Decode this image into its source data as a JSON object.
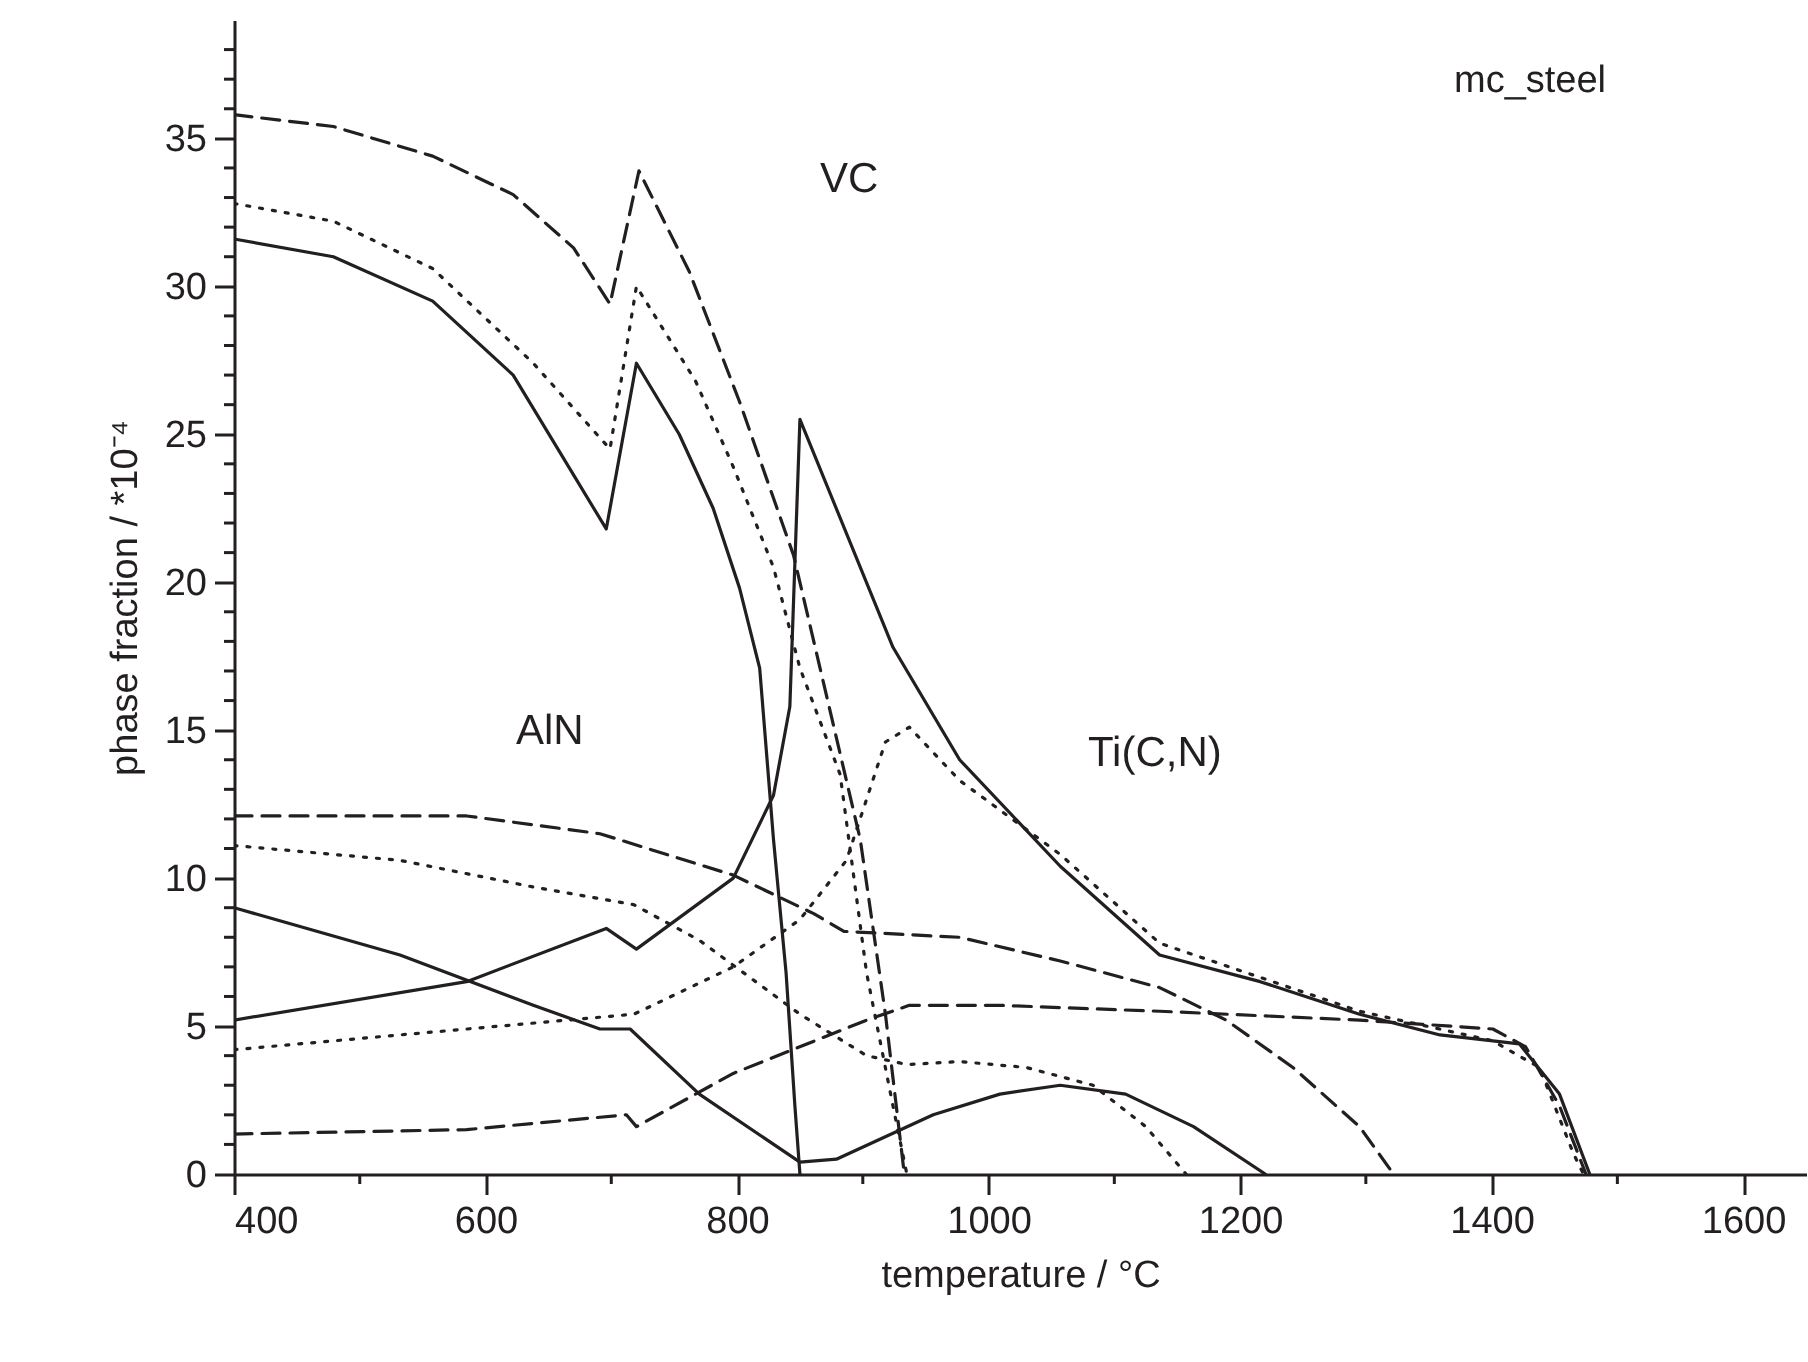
{
  "chart_data": {
    "type": "line",
    "xlabel": "temperature / °C",
    "ylabel": "phase fraction / *10⁻⁴",
    "xlim": [
      400,
      1650
    ],
    "ylim": [
      0,
      39
    ],
    "xticks": [
      400,
      {
        "value": 500,
        "label": null
      },
      600,
      {
        "value": 700,
        "label": null
      },
      800,
      {
        "value": 900,
        "label": null
      },
      1000,
      {
        "value": 1100,
        "label": null
      },
      1200,
      {
        "value": 1300,
        "label": null
      },
      1400,
      {
        "value": 1500,
        "label": null
      },
      1600
    ],
    "yticks": [
      0,
      {
        "value": 1,
        "label": null
      },
      {
        "value": 2,
        "label": null
      },
      {
        "value": 3,
        "label": null
      },
      {
        "value": 4,
        "label": null
      },
      5,
      {
        "value": 6,
        "label": null
      },
      {
        "value": 7,
        "label": null
      },
      {
        "value": 8,
        "label": null
      },
      {
        "value": 9,
        "label": null
      },
      10,
      {
        "value": 11,
        "label": null
      },
      {
        "value": 12,
        "label": null
      },
      {
        "value": 13,
        "label": null
      },
      {
        "value": 14,
        "label": null
      },
      15,
      {
        "value": 16,
        "label": null
      },
      {
        "value": 17,
        "label": null
      },
      {
        "value": 18,
        "label": null
      },
      {
        "value": 19,
        "label": null
      },
      20,
      {
        "value": 21,
        "label": null
      },
      {
        "value": 22,
        "label": null
      },
      {
        "value": 23,
        "label": null
      },
      {
        "value": 24,
        "label": null
      },
      25,
      {
        "value": 26,
        "label": null
      },
      {
        "value": 27,
        "label": null
      },
      {
        "value": 28,
        "label": null
      },
      {
        "value": 29,
        "label": null
      },
      30,
      {
        "value": 31,
        "label": null
      },
      {
        "value": 32,
        "label": null
      },
      {
        "value": 33,
        "label": null
      },
      {
        "value": 34,
        "label": null
      },
      35,
      {
        "value": 36,
        "label": null
      },
      {
        "value": 37,
        "label": null
      },
      {
        "value": 38,
        "label": null
      }
    ],
    "grid": false,
    "series": [
      {
        "color": "#231f20",
        "line_style": "dashed",
        "x": [
          400,
          479,
          558,
          622,
          670,
          699,
          722,
          762,
          802,
          845,
          866,
          898,
          918,
          933
        ],
        "values": [
          35.8,
          35.4,
          34.4,
          33.1,
          31.3,
          29.4,
          33.9,
          30.5,
          26.1,
          20.9,
          17.1,
          11.3,
          5.4,
          0
        ]
      },
      {
        "color": "#231f20",
        "line_style": "dotted",
        "x": [
          400,
          479,
          558,
          638,
          699,
          720,
          767,
          797,
          829,
          850,
          882,
          903,
          924,
          935
        ],
        "values": [
          32.8,
          32.2,
          30.6,
          27.4,
          24.5,
          30.0,
          26.8,
          23.9,
          20.5,
          17.1,
          13.5,
          6.8,
          2.3,
          0
        ]
      },
      {
        "color": "#231f20",
        "line_style": "solid",
        "x": [
          400,
          479,
          558,
          622,
          696,
          720,
          754,
          781,
          802,
          818,
          829,
          839,
          846,
          850
        ],
        "values": [
          31.6,
          31.0,
          29.5,
          27.0,
          21.8,
          27.4,
          25.0,
          22.5,
          19.8,
          17.1,
          11.3,
          6.8,
          2.3,
          0
        ]
      },
      {
        "color": "#231f20",
        "line_style": "solid",
        "x": [
          400,
          585,
          696,
          720,
          797,
          829,
          842,
          850,
          924,
          977,
          1057,
          1136,
          1216,
          1295,
          1359,
          1422,
          1454,
          1478
        ],
        "values": [
          5.2,
          6.5,
          8.3,
          7.6,
          10.0,
          12.8,
          15.8,
          25.5,
          17.8,
          14.0,
          10.4,
          7.4,
          6.5,
          5.4,
          4.7,
          4.4,
          2.7,
          0
        ]
      },
      {
        "color": "#231f20",
        "line_style": "dotted",
        "x": [
          400,
          532,
          718,
          797,
          850,
          887,
          918,
          937,
          977,
          1057,
          1136,
          1295,
          1401,
          1438,
          1465,
          1473
        ],
        "values": [
          4.2,
          4.7,
          5.4,
          7.0,
          8.6,
          10.6,
          14.6,
          15.1,
          13.3,
          10.8,
          7.8,
          5.5,
          4.5,
          3.6,
          0.7,
          0
        ]
      },
      {
        "color": "#231f20",
        "line_style": "dashed",
        "x": [
          400,
          585,
          712,
          720,
          797,
          903,
          937,
          1009,
          1136,
          1295,
          1401,
          1427,
          1454,
          1475
        ],
        "values": [
          1.35,
          1.5,
          2.0,
          1.6,
          3.4,
          5.2,
          5.7,
          5.7,
          5.5,
          5.2,
          4.9,
          4.3,
          2.3,
          0
        ]
      },
      {
        "color": "#231f20",
        "line_style": "dashed",
        "x": [
          400,
          585,
          691,
          797,
          861,
          885,
          977,
          1057,
          1136,
          1189,
          1242,
          1295,
          1322
        ],
        "values": [
          12.1,
          12.1,
          11.5,
          10.1,
          8.8,
          8.2,
          8.0,
          7.2,
          6.3,
          5.2,
          3.6,
          1.6,
          0
        ]
      },
      {
        "color": "#231f20",
        "line_style": "dotted",
        "x": [
          400,
          532,
          638,
          718,
          770,
          850,
          903,
          935,
          977,
          1030,
          1083,
          1125,
          1157
        ],
        "values": [
          11.1,
          10.6,
          9.7,
          9.1,
          7.9,
          5.4,
          4.0,
          3.7,
          3.8,
          3.6,
          3.0,
          1.6,
          0
        ]
      },
      {
        "color": "#231f20",
        "line_style": "solid",
        "x": [
          400,
          532,
          638,
          691,
          715,
          770,
          850,
          879,
          956,
          1009,
          1057,
          1109,
          1163,
          1220
        ],
        "values": [
          9.0,
          7.4,
          5.7,
          4.9,
          4.9,
          2.7,
          0.4,
          0.5,
          2.0,
          2.7,
          3.0,
          2.7,
          1.6,
          0
        ]
      }
    ],
    "annotations": [
      "VC",
      "AlN",
      "Ti(C,N)",
      "mc_steel"
    ]
  }
}
